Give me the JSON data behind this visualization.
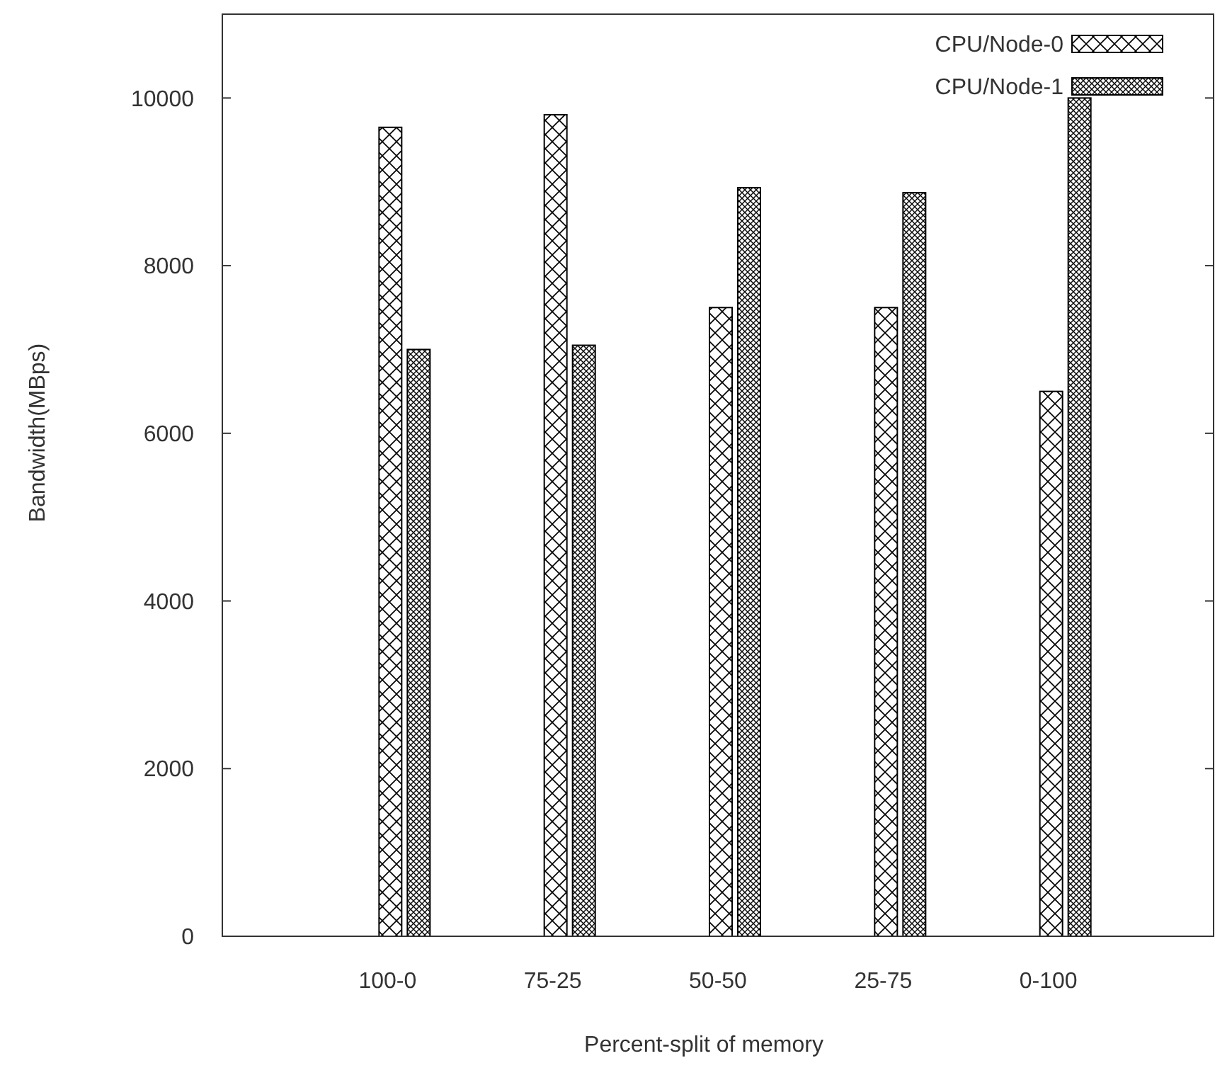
{
  "chart_data": {
    "type": "bar",
    "xlabel": "Percent-split of memory",
    "ylabel": "Bandwidth(MBps)",
    "categories": [
      "100-0",
      "75-25",
      "50-50",
      "25-75",
      "0-100"
    ],
    "series": [
      {
        "name": "CPU/Node-0",
        "color": "#000000",
        "values": [
          9650,
          9800,
          7500,
          7500,
          6500
        ]
      },
      {
        "name": "CPU/Node-1",
        "color": "#000000",
        "values": [
          7000,
          7050,
          8930,
          8870,
          10000
        ]
      }
    ],
    "ylim": [
      0,
      11000
    ],
    "yticks": [
      0,
      2000,
      4000,
      6000,
      8000,
      10000
    ],
    "grid": false,
    "legend": "top right"
  }
}
